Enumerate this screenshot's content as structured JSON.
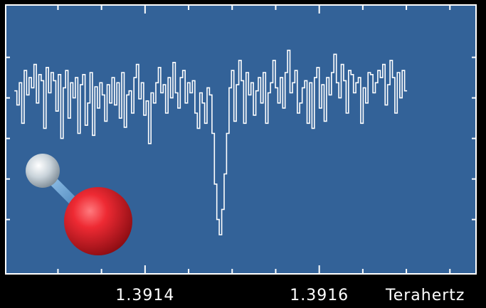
{
  "chart_data": {
    "type": "line",
    "style": "step",
    "xlabel": "Terahertz",
    "x_ticks": [
      {
        "value": 1.3914,
        "label": "1.3914"
      },
      {
        "value": 1.3916,
        "label": "1.3916"
      }
    ],
    "xlim": [
      1.39124,
      1.39178
    ],
    "ylim": [
      -1.0,
      1.0
    ],
    "grid": false,
    "legend": "none",
    "colors": {
      "background": "#000000",
      "plot_area": "#336298",
      "line": "#ffffff",
      "molecule_oxygen": "#e8202a",
      "molecule_hydrogen": "#c8d4dc",
      "molecule_bond": "#6aa6d8"
    },
    "series": [
      {
        "x_start": 1.39125,
        "x_step": 2.8e-06,
        "values": [
          0.42,
          0.28,
          0.5,
          0.1,
          0.62,
          0.38,
          0.55,
          0.45,
          0.68,
          0.3,
          0.58,
          0.52,
          0.05,
          0.65,
          0.4,
          0.6,
          0.52,
          0.22,
          0.58,
          -0.05,
          0.45,
          0.62,
          0.15,
          0.5,
          0.35,
          0.55,
          0.0,
          0.48,
          0.58,
          0.08,
          0.3,
          0.6,
          -0.02,
          0.46,
          0.25,
          0.5,
          0.38,
          0.12,
          0.48,
          0.3,
          0.55,
          0.28,
          0.5,
          0.15,
          0.6,
          0.06,
          0.38,
          0.42,
          0.2,
          0.55,
          0.68,
          0.34,
          0.5,
          0.18,
          0.32,
          -0.1,
          0.4,
          0.3,
          0.5,
          0.65,
          0.4,
          0.48,
          0.2,
          0.55,
          0.35,
          0.7,
          0.4,
          0.25,
          0.55,
          0.62,
          0.3,
          0.5,
          0.4,
          0.52,
          0.2,
          0.05,
          0.4,
          0.3,
          0.1,
          0.45,
          0.38,
          0.0,
          -0.5,
          -0.85,
          -1.0,
          -0.75,
          -0.4,
          0.0,
          0.45,
          0.62,
          0.12,
          0.48,
          0.72,
          0.52,
          0.1,
          0.6,
          0.38,
          0.5,
          0.18,
          0.42,
          0.55,
          0.3,
          0.6,
          0.1,
          0.4,
          0.5,
          0.72,
          0.45,
          0.3,
          0.55,
          0.25,
          0.6,
          0.82,
          0.4,
          0.5,
          0.62,
          0.2,
          0.3,
          0.45,
          0.52,
          0.1,
          0.5,
          0.05,
          0.55,
          0.65,
          0.25,
          0.48,
          0.12,
          0.55,
          0.38,
          0.6,
          0.78,
          0.5,
          0.35,
          0.68,
          0.52,
          0.2,
          0.62,
          0.58,
          0.4,
          0.5,
          0.55,
          0.1,
          0.45,
          0.3,
          0.6,
          0.58,
          0.4,
          0.5,
          0.62,
          0.55,
          0.68,
          0.28,
          0.48,
          0.72,
          0.55,
          0.2,
          0.6,
          0.35,
          0.62,
          0.42
        ]
      }
    ]
  }
}
